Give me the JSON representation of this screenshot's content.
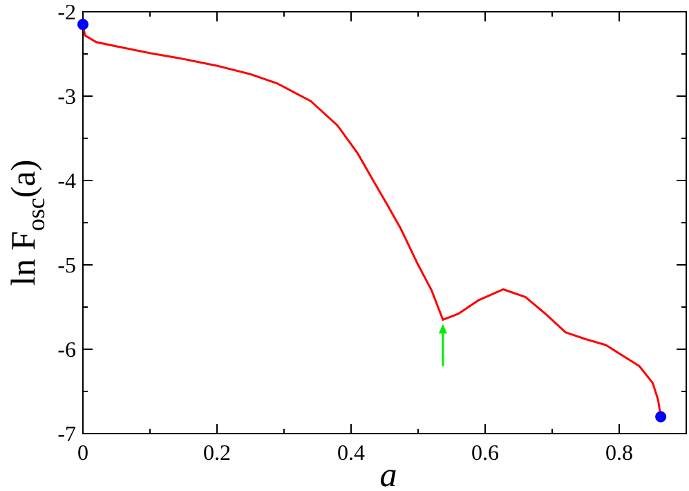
{
  "chart_data": {
    "type": "line",
    "xlabel": "a",
    "ylabel": {
      "main": "ln F",
      "sub": "osc",
      "tail": "(a)"
    },
    "xlim": [
      0,
      0.9
    ],
    "ylim": [
      -7,
      -2
    ],
    "xticks": [
      0,
      0.2,
      0.4,
      0.6,
      0.8
    ],
    "yticks": [
      -2,
      -3,
      -4,
      -5,
      -6,
      -7
    ],
    "xticks_minor": [
      0.1,
      0.3,
      0.5,
      0.7
    ],
    "yticks_minor": [
      -2.5,
      -3.5,
      -4.5,
      -5.5,
      -6.5
    ],
    "series": [
      {
        "color": "#ff0000",
        "x": [
          0,
          0.003,
          0.02,
          0.05,
          0.1,
          0.15,
          0.2,
          0.25,
          0.29,
          0.34,
          0.38,
          0.41,
          0.433,
          0.455,
          0.474,
          0.5,
          0.52,
          0.537,
          0.56,
          0.59,
          0.627,
          0.66,
          0.69,
          0.72,
          0.75,
          0.78,
          0.8,
          0.83,
          0.85,
          0.858,
          0.862
        ],
        "values": [
          -2.15,
          -2.28,
          -2.36,
          -2.41,
          -2.49,
          -2.56,
          -2.64,
          -2.74,
          -2.85,
          -3.06,
          -3.35,
          -3.68,
          -4.0,
          -4.3,
          -4.57,
          -5.0,
          -5.3,
          -5.65,
          -5.58,
          -5.42,
          -5.29,
          -5.38,
          -5.58,
          -5.8,
          -5.88,
          -5.95,
          -6.05,
          -6.2,
          -6.4,
          -6.6,
          -6.8
        ]
      }
    ],
    "points": {
      "color": "#0000ff",
      "x": [
        0,
        0.862
      ],
      "values": [
        -2.15,
        -6.8
      ]
    },
    "arrow": {
      "color": "#00ee00",
      "x": 0.537,
      "y_from": -6.2,
      "y_to": -5.7
    }
  }
}
